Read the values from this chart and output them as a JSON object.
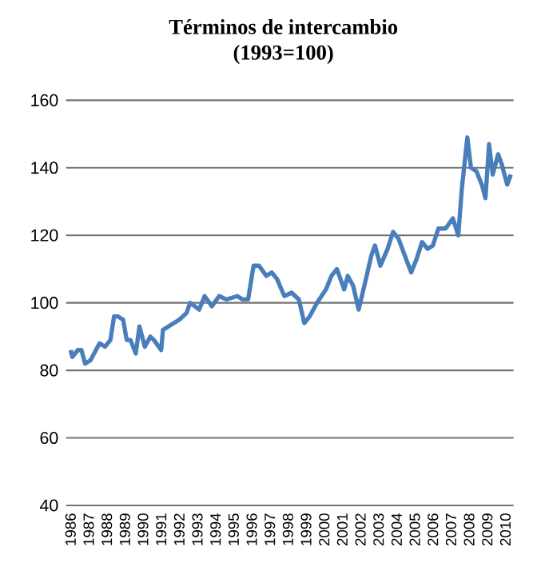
{
  "chart_data": {
    "type": "line",
    "title": "Términos de intercambio",
    "subtitle": "(1993=100)",
    "x": [
      1986.0,
      1986.1,
      1986.4,
      1986.6,
      1986.8,
      1987.1,
      1987.6,
      1987.9,
      1988.2,
      1988.4,
      1988.6,
      1988.9,
      1989.1,
      1989.3,
      1989.6,
      1989.8,
      1990.1,
      1990.4,
      1990.6,
      1991.0,
      1991.1,
      1991.7,
      1992.0,
      1992.4,
      1992.6,
      1993.1,
      1993.4,
      1993.8,
      1994.2,
      1994.6,
      1995.2,
      1995.5,
      1995.8,
      1996.1,
      1996.4,
      1996.8,
      1997.1,
      1997.4,
      1997.8,
      1998.2,
      1998.6,
      1998.9,
      1999.2,
      1999.6,
      2000.1,
      2000.4,
      2000.7,
      2001.1,
      2001.3,
      2001.6,
      2001.9,
      2002.3,
      2002.6,
      2002.8,
      2003.1,
      2003.5,
      2003.8,
      2004.1,
      2004.8,
      2005.1,
      2005.4,
      2005.7,
      2006.0,
      2006.3,
      2006.7,
      2007.1,
      2007.4,
      2007.6,
      2007.9,
      2008.1,
      2008.4,
      2008.7,
      2008.9,
      2009.1,
      2009.3,
      2009.6,
      2009.8,
      2010.1,
      2010.3
    ],
    "series": [
      {
        "color": "#4a7ebb",
        "values": [
          86,
          84,
          86,
          86,
          82,
          83,
          88,
          87,
          89,
          96,
          96,
          95,
          89,
          89,
          85,
          93,
          87,
          90,
          89,
          86,
          92,
          94,
          95,
          97,
          100,
          98,
          102,
          99,
          102,
          101,
          102,
          101,
          101,
          111,
          111,
          108,
          109,
          107,
          102,
          103,
          101,
          94,
          96,
          100,
          104,
          108,
          110,
          104,
          108,
          105,
          98,
          107,
          114,
          117,
          111,
          116,
          121,
          119,
          109,
          113,
          118,
          116,
          117,
          122,
          122,
          125,
          120,
          134,
          149,
          140,
          139,
          135,
          131,
          147,
          138,
          144,
          141,
          135,
          138
        ]
      }
    ],
    "xlim": [
      1985.75,
      2010.45
    ],
    "xticks": [
      1986,
      1987,
      1988,
      1989,
      1990,
      1991,
      1992,
      1993,
      1994,
      1995,
      1996,
      1997,
      1998,
      1999,
      2000,
      2001,
      2002,
      2003,
      2004,
      2005,
      2006,
      2007,
      2008,
      2009,
      2010
    ],
    "ylim": [
      40,
      160
    ],
    "yticks": [
      40,
      60,
      80,
      100,
      120,
      140,
      160
    ],
    "grid": "y",
    "marker": "none",
    "line_style": "solid"
  }
}
